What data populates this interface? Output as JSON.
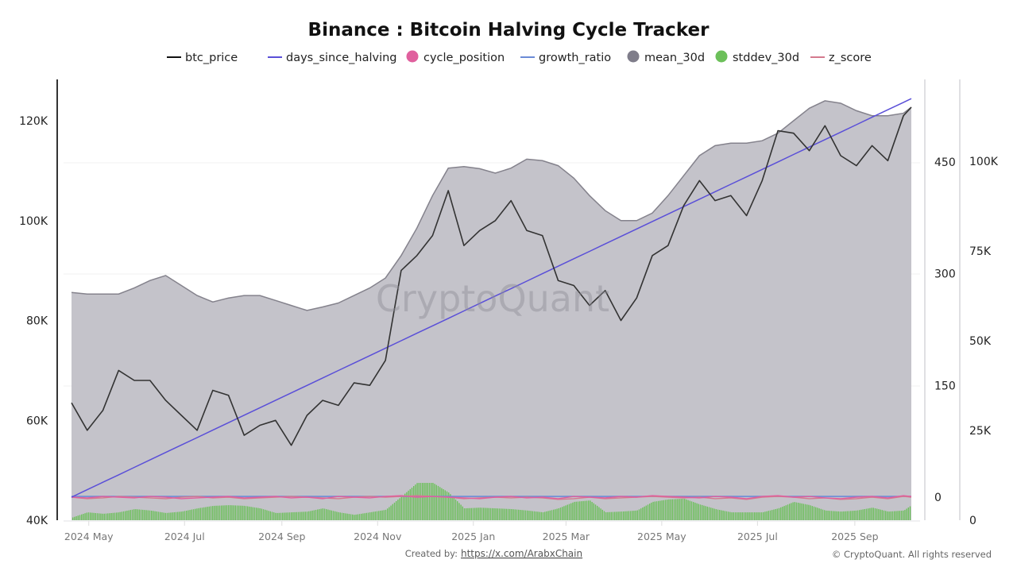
{
  "chart_data": {
    "type": "line",
    "title": "Binance : Bitcoin Halving Cycle Tracker",
    "watermark": "CryptoQuant",
    "footer": {
      "created_by_label": "Created by:",
      "created_by_link": "https://x.com/ArabxChain",
      "copyright": "© CryptoQuant. All rights reserved"
    },
    "legend": [
      {
        "name": "btc_price",
        "color": "#111111",
        "marker": "line"
      },
      {
        "name": "days_since_halving",
        "color": "#5a4fd8",
        "marker": "line"
      },
      {
        "name": "cycle_position",
        "color": "#e0609e",
        "marker": "dot"
      },
      {
        "name": "growth_ratio",
        "color": "#6b8bd6",
        "marker": "line"
      },
      {
        "name": "mean_30d",
        "color": "#7f7d8a",
        "marker": "dot"
      },
      {
        "name": "stddev_30d",
        "color": "#6cc05a",
        "marker": "dot"
      },
      {
        "name": "z_score",
        "color": "#d47a8e",
        "marker": "line"
      }
    ],
    "legend_placement": "top-center",
    "grid": true,
    "axes": {
      "left": {
        "ticks": [
          "40K",
          "60K",
          "80K",
          "100K",
          "120K"
        ],
        "tick_values": [
          40000,
          60000,
          80000,
          100000,
          120000
        ],
        "range": [
          40000,
          126000
        ]
      },
      "middle": {
        "ticks": [
          "0",
          "150",
          "300",
          "450"
        ],
        "tick_values": [
          0,
          150,
          300,
          450
        ],
        "range": [
          -32,
          560
        ]
      },
      "right": {
        "ticks": [
          "0",
          "25K",
          "50K",
          "75K",
          "100K"
        ],
        "tick_values": [
          0,
          25000,
          50000,
          75000,
          100000
        ],
        "range": [
          0,
          123000
        ]
      },
      "x": {
        "ticks": [
          {
            "label": "2024 May",
            "date": "2024-05-01"
          },
          {
            "label": "2024 Jul",
            "date": "2024-07-01"
          },
          {
            "label": "2024 Sep",
            "date": "2024-09-01"
          },
          {
            "label": "2024 Nov",
            "date": "2024-11-01"
          },
          {
            "label": "2025 Jan",
            "date": "2025-01-01"
          },
          {
            "label": "2025 Mar",
            "date": "2025-03-01"
          },
          {
            "label": "2025 May",
            "date": "2025-05-01"
          },
          {
            "label": "2025 Jul",
            "date": "2025-07-01"
          },
          {
            "label": "2025 Sep",
            "date": "2025-09-01"
          }
        ],
        "range": [
          "2024-04-20",
          "2025-10-07"
        ]
      }
    },
    "x": [
      "2024-04-20",
      "2024-04-30",
      "2024-05-10",
      "2024-05-20",
      "2024-05-30",
      "2024-06-09",
      "2024-06-19",
      "2024-06-29",
      "2024-07-09",
      "2024-07-19",
      "2024-07-29",
      "2024-08-08",
      "2024-08-18",
      "2024-08-28",
      "2024-09-07",
      "2024-09-17",
      "2024-09-27",
      "2024-10-07",
      "2024-10-17",
      "2024-10-27",
      "2024-11-06",
      "2024-11-16",
      "2024-11-26",
      "2024-12-06",
      "2024-12-16",
      "2024-12-26",
      "2025-01-05",
      "2025-01-15",
      "2025-01-25",
      "2025-02-04",
      "2025-02-14",
      "2025-02-24",
      "2025-03-06",
      "2025-03-16",
      "2025-03-26",
      "2025-04-05",
      "2025-04-15",
      "2025-04-25",
      "2025-05-05",
      "2025-05-15",
      "2025-05-25",
      "2025-06-04",
      "2025-06-14",
      "2025-06-24",
      "2025-07-04",
      "2025-07-14",
      "2025-07-24",
      "2025-08-03",
      "2025-08-13",
      "2025-08-23",
      "2025-09-02",
      "2025-09-12",
      "2025-09-22",
      "2025-10-02",
      "2025-10-07"
    ],
    "series": [
      {
        "name": "btc_price",
        "axis": "left",
        "values": [
          63500,
          58000,
          62000,
          70000,
          68000,
          68000,
          64000,
          61000,
          58000,
          66000,
          65000,
          57000,
          59000,
          60000,
          55000,
          61000,
          64000,
          63000,
          67500,
          67000,
          72000,
          90000,
          93000,
          97000,
          106000,
          95000,
          98000,
          100000,
          104000,
          98000,
          97000,
          88000,
          87000,
          83000,
          86000,
          80000,
          84500,
          93000,
          95000,
          103000,
          108000,
          104000,
          105000,
          101000,
          108000,
          118000,
          117500,
          114000,
          119000,
          113000,
          111000,
          115000,
          112000,
          121000,
          122700
        ]
      },
      {
        "name": "days_since_halving",
        "axis": "middle",
        "values": [
          0,
          10,
          20,
          30,
          40,
          50,
          60,
          70,
          80,
          90,
          100,
          110,
          120,
          130,
          140,
          150,
          160,
          170,
          180,
          190,
          200,
          210,
          220,
          230,
          240,
          250,
          260,
          270,
          280,
          290,
          300,
          310,
          320,
          330,
          340,
          350,
          360,
          370,
          380,
          390,
          400,
          410,
          420,
          430,
          440,
          450,
          460,
          470,
          480,
          490,
          500,
          510,
          520,
          530,
          535
        ]
      },
      {
        "name": "cycle_position",
        "axis": "middle",
        "values": [
          0,
          -1,
          1,
          0,
          -1,
          1,
          0,
          -2,
          -1,
          0,
          1,
          -1,
          0,
          1,
          -1,
          0,
          -2,
          1,
          0,
          -1,
          1,
          2,
          0,
          1,
          0,
          -1,
          -2,
          0,
          1,
          -1,
          0,
          -2,
          1,
          0,
          -1,
          1,
          0,
          2,
          1,
          0,
          -1,
          1,
          0,
          -2,
          1,
          2,
          0,
          1,
          -1,
          -2,
          0,
          1,
          -1,
          2,
          1
        ]
      },
      {
        "name": "growth_ratio",
        "axis": "middle",
        "values": [
          1,
          1,
          1,
          1,
          1,
          1,
          1,
          1,
          1,
          1,
          1,
          1,
          1,
          1,
          1,
          1,
          1,
          1,
          1,
          1,
          1,
          1,
          1,
          1,
          1,
          1,
          1,
          1,
          1,
          1,
          1,
          1,
          1,
          1,
          1,
          1,
          1,
          1,
          1,
          1,
          1,
          1,
          1,
          1,
          1,
          1,
          1,
          1,
          1,
          1,
          1,
          1,
          1,
          1,
          1
        ]
      },
      {
        "name": "mean_30d",
        "axis": "left",
        "values": [
          85600,
          85300,
          85300,
          85300,
          86500,
          88000,
          89000,
          87000,
          85000,
          83700,
          84500,
          85000,
          85000,
          84000,
          83000,
          82000,
          82700,
          83500,
          85000,
          86500,
          88500,
          93000,
          98500,
          105000,
          110500,
          110800,
          110400,
          109500,
          110500,
          112300,
          112000,
          111000,
          108500,
          105000,
          102000,
          100000,
          100000,
          101500,
          105000,
          109000,
          113000,
          115000,
          115500,
          115500,
          116000,
          117500,
          120000,
          122500,
          124000,
          123500,
          122000,
          121000,
          121000,
          121500,
          122700
        ]
      },
      {
        "name": "stddev_30d",
        "axis": "right",
        "values": [
          700,
          2200,
          1800,
          2200,
          3100,
          2700,
          2000,
          2400,
          3300,
          4000,
          4200,
          4000,
          3300,
          2000,
          2200,
          2400,
          3300,
          2200,
          1500,
          2200,
          2900,
          6600,
          10400,
          10400,
          7700,
          3300,
          3500,
          3300,
          3100,
          2700,
          2200,
          3300,
          5100,
          5500,
          2200,
          2400,
          2700,
          5100,
          5800,
          6000,
          4400,
          3100,
          2200,
          2200,
          2200,
          3300,
          5100,
          4200,
          2700,
          2400,
          2700,
          3500,
          2400,
          2700,
          4200
        ]
      },
      {
        "name": "z_score",
        "axis": "middle",
        "values": [
          0,
          -2,
          -1,
          1,
          0,
          -1,
          -2,
          0,
          1,
          -1,
          0,
          -2,
          -1,
          0,
          1,
          0,
          -1,
          -2,
          0,
          1,
          0,
          1,
          2,
          1,
          0,
          -2,
          -1,
          0,
          -1,
          0,
          -1,
          -3,
          -2,
          0,
          -2,
          -1,
          0,
          1,
          0,
          -1,
          0,
          -2,
          -1,
          -3,
          0,
          1,
          0,
          -2,
          -1,
          -3,
          -2,
          0,
          -2,
          1,
          0
        ]
      }
    ]
  }
}
